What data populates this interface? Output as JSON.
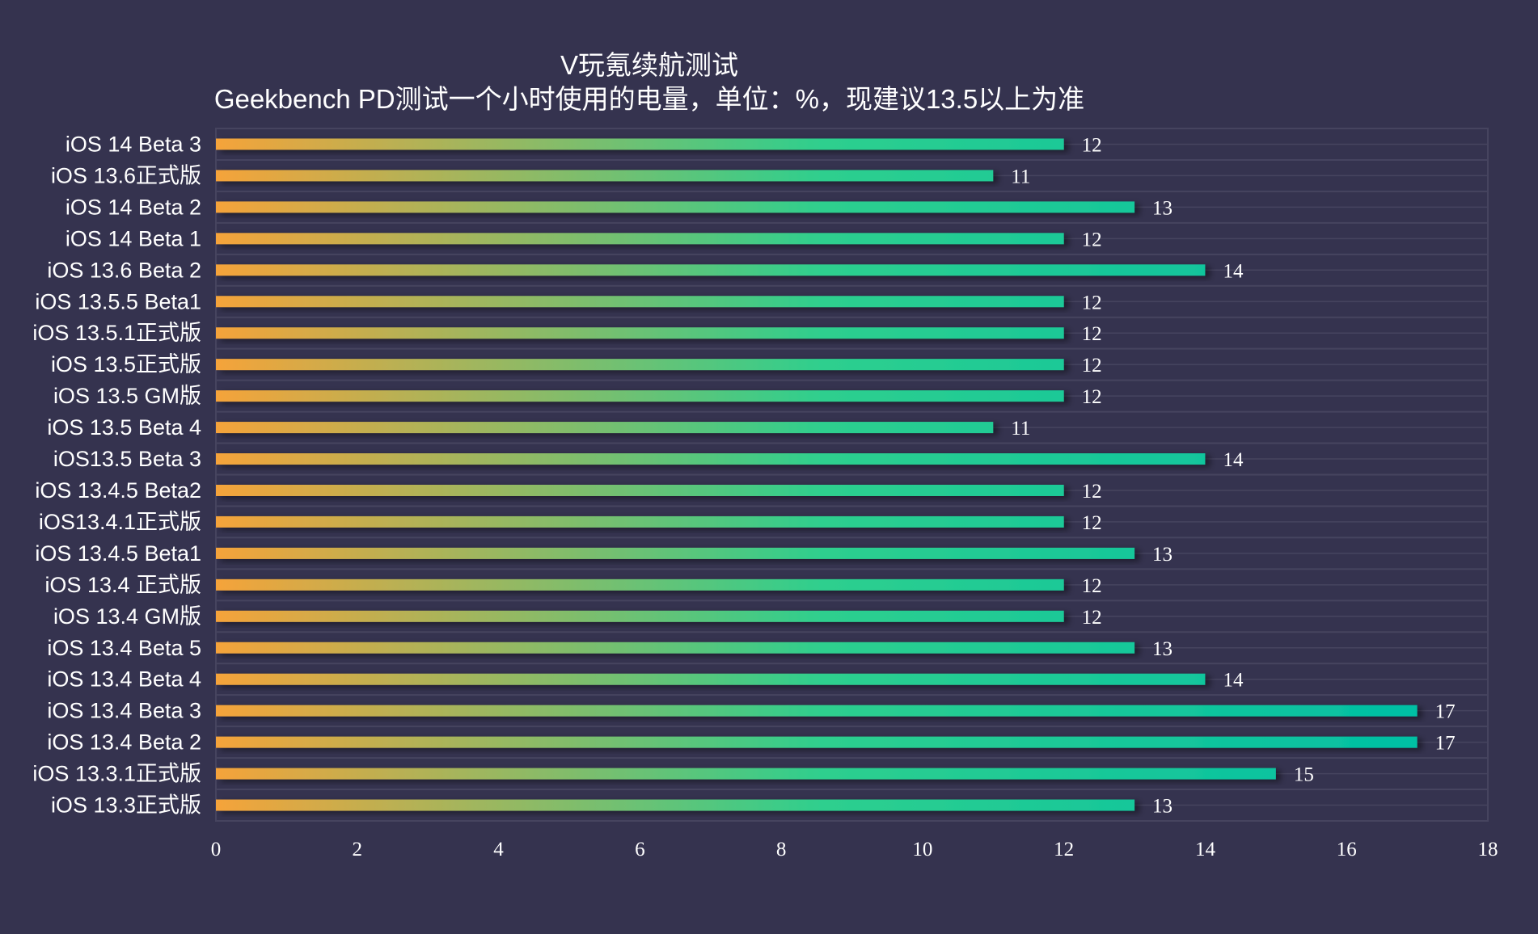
{
  "chart_data": {
    "type": "bar",
    "orientation": "horizontal",
    "title": "V玩氪续航测试",
    "subtitle": "Geekbench PD测试一个小时使用的电量，单位：%，现建议13.5以上为准",
    "categories": [
      "iOS 14 Beta 3",
      "iOS 13.6正式版",
      "iOS 14 Beta 2",
      "iOS 14 Beta 1",
      "iOS 13.6 Beta 2",
      "iOS 13.5.5 Beta1",
      "iOS 13.5.1正式版",
      "iOS 13.5正式版",
      "iOS 13.5 GM版",
      "iOS 13.5 Beta 4",
      "iOS13.5 Beta 3",
      "iOS 13.4.5 Beta2",
      "iOS13.4.1正式版",
      "iOS 13.4.5 Beta1",
      "iOS 13.4 正式版",
      "iOS 13.4 GM版",
      "iOS 13.4 Beta 5",
      "iOS 13.4 Beta 4",
      "iOS 13.4 Beta 3",
      "iOS 13.4 Beta 2",
      "iOS 13.3.1正式版",
      "iOS 13.3正式版"
    ],
    "values": [
      12,
      11,
      13,
      12,
      14,
      12,
      12,
      12,
      12,
      11,
      14,
      12,
      12,
      13,
      12,
      12,
      13,
      14,
      17,
      17,
      15,
      13
    ],
    "xlim": [
      0,
      18
    ],
    "xticks": [
      "0",
      "2",
      "4",
      "6",
      "8",
      "10",
      "12",
      "14",
      "16",
      "18"
    ],
    "grid": true,
    "data_labels": true,
    "colors": {
      "background": "#35334f",
      "bar_start": "#f5a33a",
      "bar_mid": "#2ecf8e",
      "bar_end": "#00bfa5",
      "grid": "#46445f"
    }
  }
}
